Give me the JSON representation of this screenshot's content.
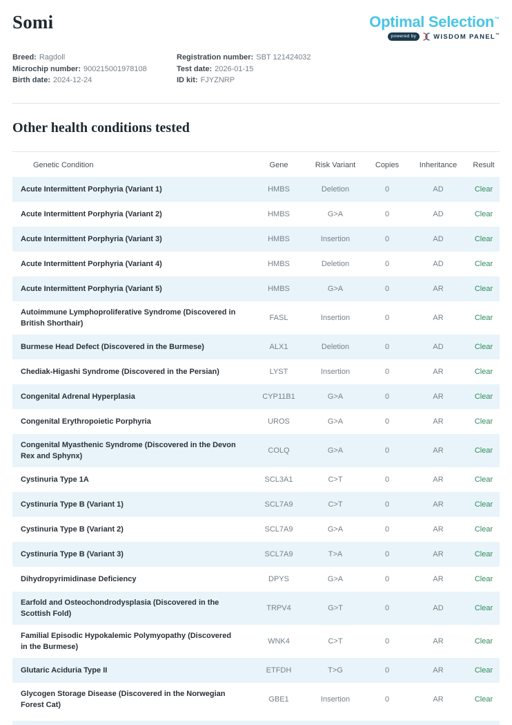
{
  "pet": {
    "name": "Somi",
    "details": {
      "left": [
        {
          "label": "Breed:",
          "value": "Ragdoll"
        },
        {
          "label": "Microchip number:",
          "value": "900215001978108"
        },
        {
          "label": "Birth date:",
          "value": "2024-12-24"
        }
      ],
      "right": [
        {
          "label": "Registration number:",
          "value": "SBT 121424032"
        },
        {
          "label": "Test date:",
          "value": "2026-01-15"
        },
        {
          "label": "ID kit:",
          "value": "FJYZNRP"
        }
      ]
    }
  },
  "brand": {
    "logo_text": "Optimal Selection",
    "logo_trademark": "™",
    "powered_by_label": "powered by",
    "partner_name": "WISDOM PANEL",
    "partner_trademark": "™",
    "logo_color": "#49c4e5",
    "partner_color": "#17374a",
    "dna_icon": "dna-helix-icon"
  },
  "section_title": "Other health conditions tested",
  "table": {
    "headers": [
      "Genetic Condition",
      "Gene",
      "Risk Variant",
      "Copies",
      "Inheritance",
      "Result"
    ],
    "stripe_color": "#e8f4fa",
    "result_color": "#2f8a5a",
    "rows": [
      {
        "condition": "Acute Intermittent Porphyria (Variant 1)",
        "gene": "HMBS",
        "risk_variant": "Deletion",
        "copies": "0",
        "inheritance": "AD",
        "result": "Clear"
      },
      {
        "condition": "Acute Intermittent Porphyria (Variant 2)",
        "gene": "HMBS",
        "risk_variant": "G>A",
        "copies": "0",
        "inheritance": "AD",
        "result": "Clear"
      },
      {
        "condition": "Acute Intermittent Porphyria (Variant 3)",
        "gene": "HMBS",
        "risk_variant": "Insertion",
        "copies": "0",
        "inheritance": "AD",
        "result": "Clear"
      },
      {
        "condition": "Acute Intermittent Porphyria (Variant 4)",
        "gene": "HMBS",
        "risk_variant": "Deletion",
        "copies": "0",
        "inheritance": "AD",
        "result": "Clear"
      },
      {
        "condition": "Acute Intermittent Porphyria (Variant 5)",
        "gene": "HMBS",
        "risk_variant": "G>A",
        "copies": "0",
        "inheritance": "AR",
        "result": "Clear"
      },
      {
        "condition": "Autoimmune Lymphoproliferative Syndrome (Discovered in British Shorthair)",
        "gene": "FASL",
        "risk_variant": "Insertion",
        "copies": "0",
        "inheritance": "AR",
        "result": "Clear"
      },
      {
        "condition": "Burmese Head Defect (Discovered in the Burmese)",
        "gene": "ALX1",
        "risk_variant": "Deletion",
        "copies": "0",
        "inheritance": "AD",
        "result": "Clear"
      },
      {
        "condition": "Chediak-Higashi Syndrome (Discovered in the Persian)",
        "gene": "LYST",
        "risk_variant": "Insertion",
        "copies": "0",
        "inheritance": "AR",
        "result": "Clear"
      },
      {
        "condition": "Congenital Adrenal Hyperplasia",
        "gene": "CYP11B1",
        "risk_variant": "G>A",
        "copies": "0",
        "inheritance": "AR",
        "result": "Clear"
      },
      {
        "condition": "Congenital Erythropoietic Porphyria",
        "gene": "UROS",
        "risk_variant": "G>A",
        "copies": "0",
        "inheritance": "AR",
        "result": "Clear"
      },
      {
        "condition": "Congenital Myasthenic Syndrome (Discovered in the Devon Rex and Sphynx)",
        "gene": "COLQ",
        "risk_variant": "G>A",
        "copies": "0",
        "inheritance": "AR",
        "result": "Clear"
      },
      {
        "condition": "Cystinuria Type 1A",
        "gene": "SCL3A1",
        "risk_variant": "C>T",
        "copies": "0",
        "inheritance": "AR",
        "result": "Clear"
      },
      {
        "condition": "Cystinuria Type B (Variant 1)",
        "gene": "SCL7A9",
        "risk_variant": "C>T",
        "copies": "0",
        "inheritance": "AR",
        "result": "Clear"
      },
      {
        "condition": "Cystinuria Type B (Variant 2)",
        "gene": "SCL7A9",
        "risk_variant": "G>A",
        "copies": "0",
        "inheritance": "AR",
        "result": "Clear"
      },
      {
        "condition": "Cystinuria Type B (Variant 3)",
        "gene": "SCL7A9",
        "risk_variant": "T>A",
        "copies": "0",
        "inheritance": "AR",
        "result": "Clear"
      },
      {
        "condition": "Dihydropyrimidinase Deficiency",
        "gene": "DPYS",
        "risk_variant": "G>A",
        "copies": "0",
        "inheritance": "AR",
        "result": "Clear"
      },
      {
        "condition": "Earfold and Osteochondrodysplasia (Discovered in the Scottish Fold)",
        "gene": "TRPV4",
        "risk_variant": "G>T",
        "copies": "0",
        "inheritance": "AD",
        "result": "Clear"
      },
      {
        "condition": "Familial Episodic Hypokalemic Polymyopathy (Discovered in the Burmese)",
        "gene": "WNK4",
        "risk_variant": "C>T",
        "copies": "0",
        "inheritance": "AR",
        "result": "Clear"
      },
      {
        "condition": "Glutaric Aciduria Type II",
        "gene": "ETFDH",
        "risk_variant": "T>G",
        "copies": "0",
        "inheritance": "AR",
        "result": "Clear"
      },
      {
        "condition": "Glycogen Storage Disease (Discovered in the Norwegian Forest Cat)",
        "gene": "GBE1",
        "risk_variant": "Insertion",
        "copies": "0",
        "inheritance": "AR",
        "result": "Clear"
      }
    ],
    "partial_next_row_visible": true
  }
}
